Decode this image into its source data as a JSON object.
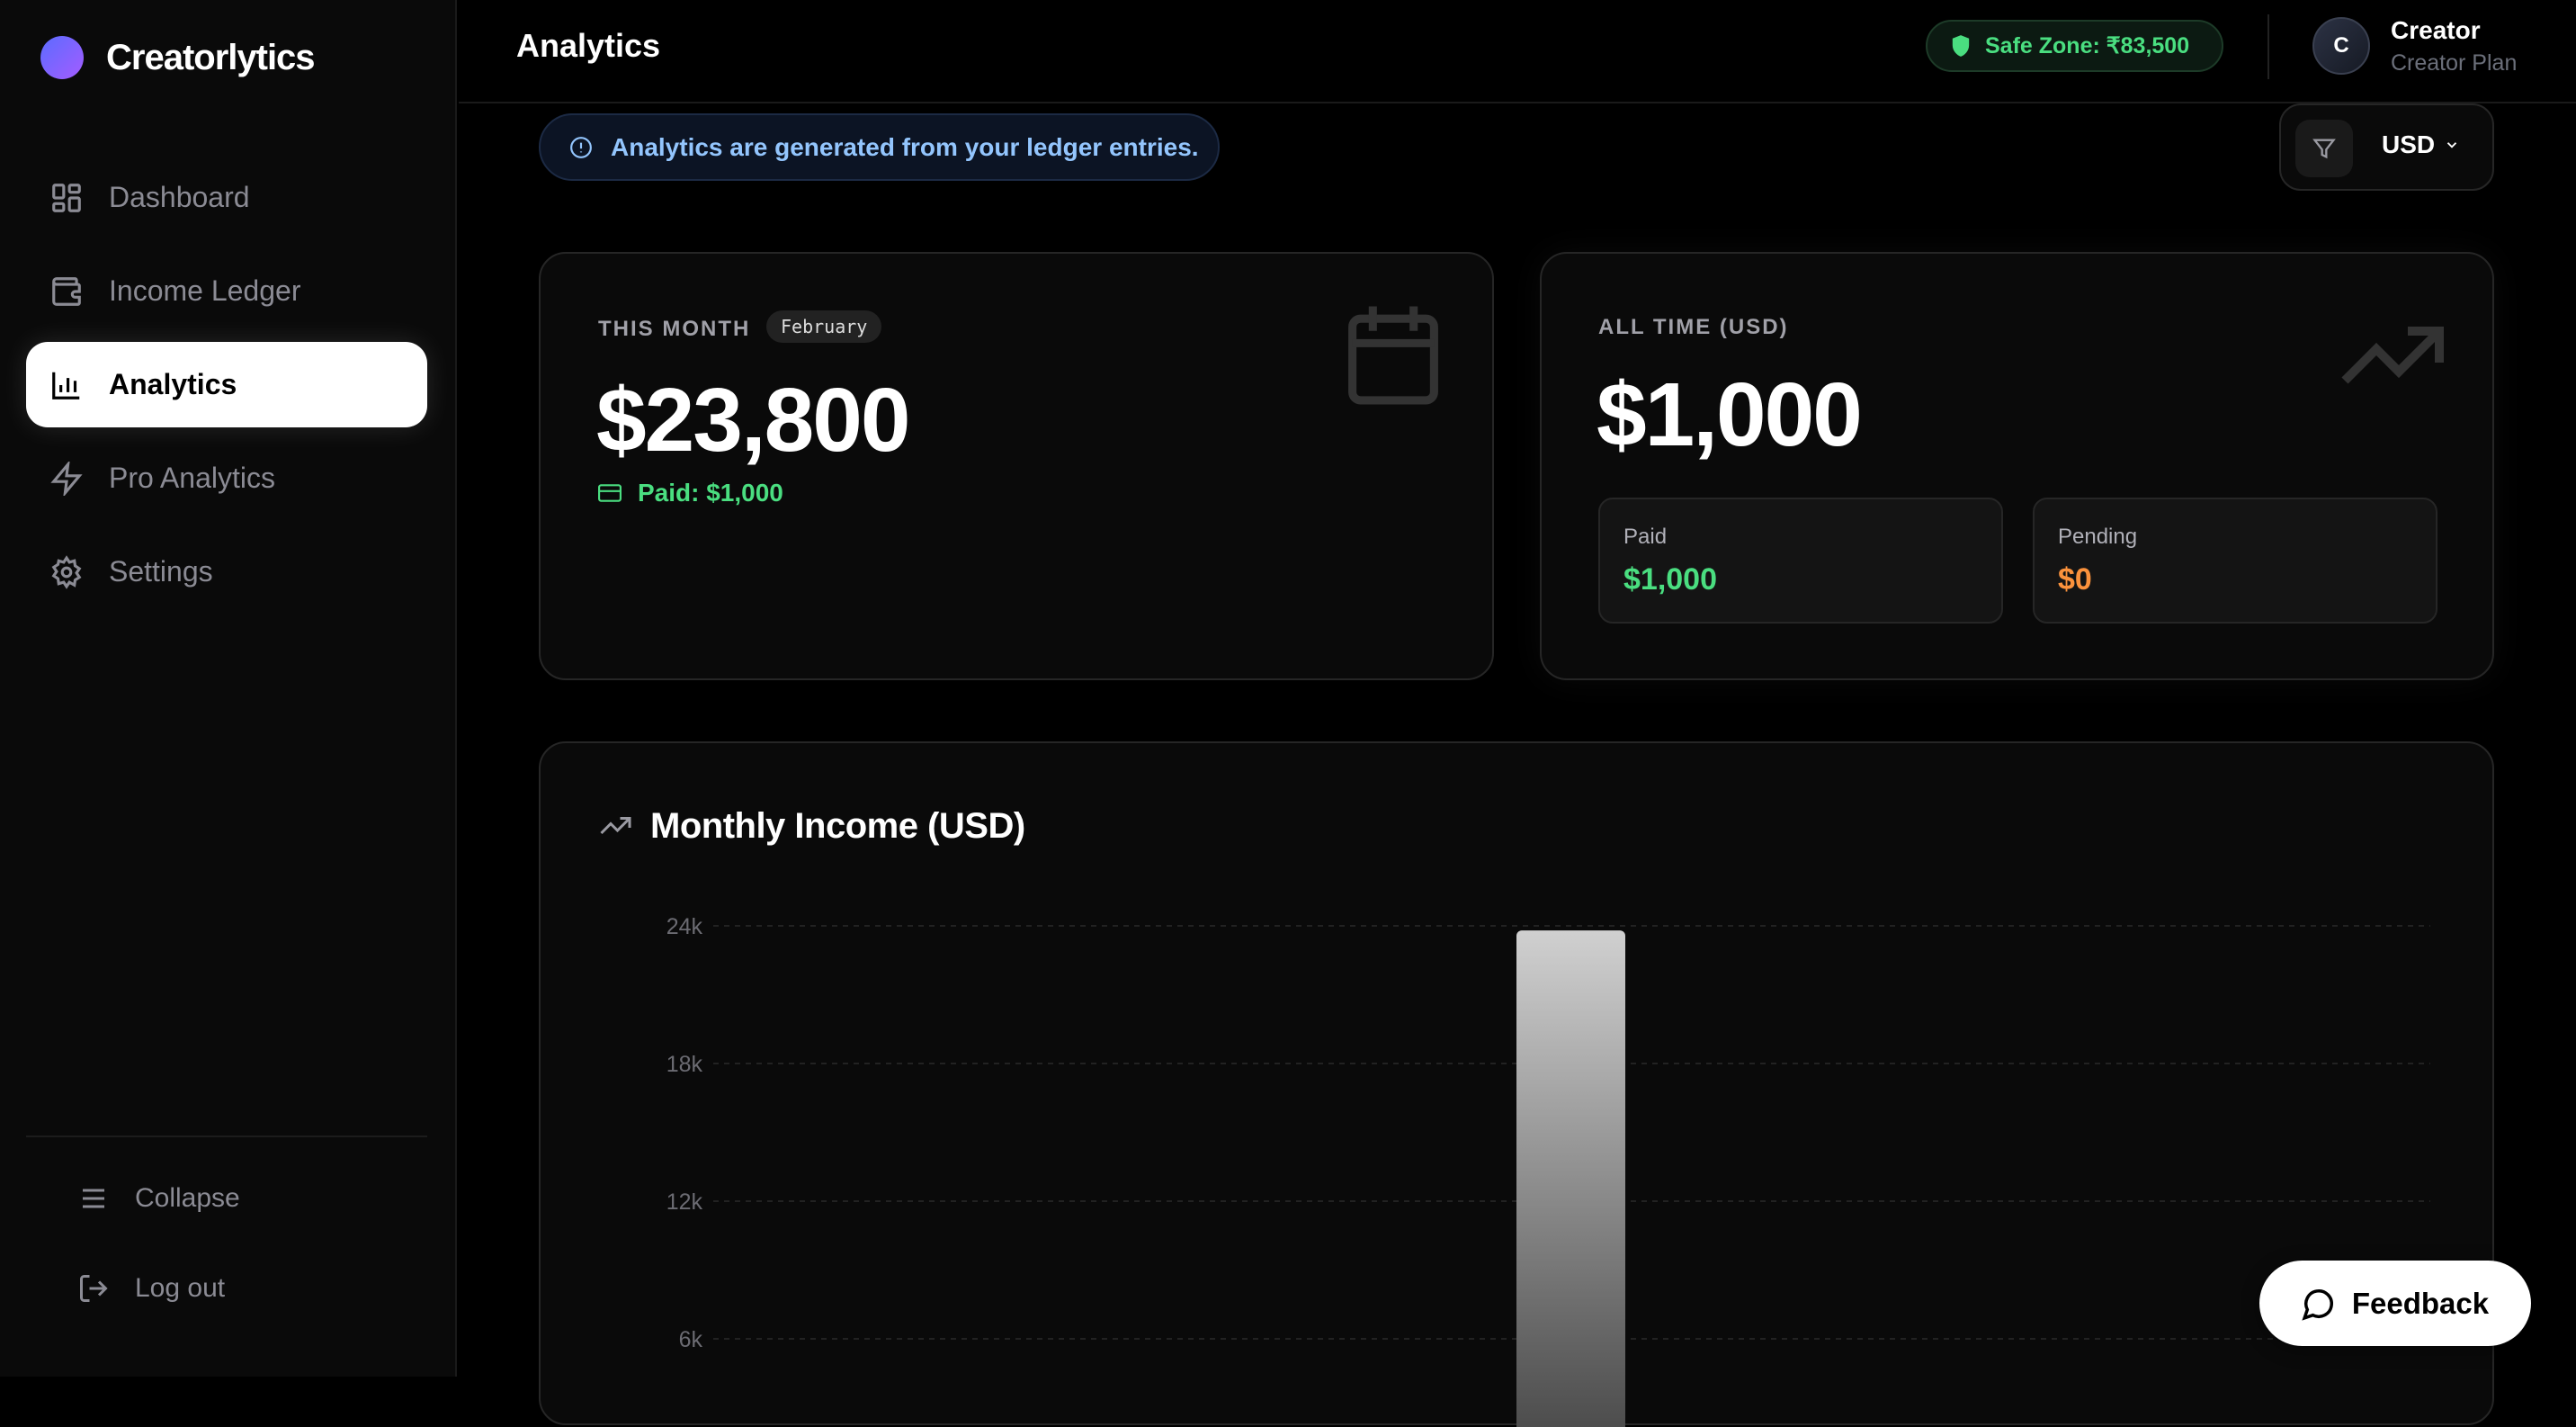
{
  "app": {
    "name": "Creatorlytics"
  },
  "sidebar": {
    "items": [
      {
        "label": "Dashboard",
        "icon": "dashboard-grid-icon"
      },
      {
        "label": "Income Ledger",
        "icon": "wallet-icon"
      },
      {
        "label": "Analytics",
        "icon": "bar-chart-icon",
        "active": true
      },
      {
        "label": "Pro Analytics",
        "icon": "lightning-icon"
      },
      {
        "label": "Settings",
        "icon": "gear-icon"
      }
    ],
    "collapse": "Collapse",
    "logout": "Log out"
  },
  "header": {
    "title": "Analytics",
    "safe_zone": "Safe Zone: ₹83,500",
    "user": {
      "initial": "C",
      "name": "Creator",
      "plan": "Creator Plan"
    }
  },
  "banner": "Analytics are generated from your ledger entries.",
  "filter": {
    "currency": "USD"
  },
  "this_month": {
    "label": "THIS MONTH",
    "month": "February",
    "amount": "$23,800",
    "paid": "Paid: $1,000"
  },
  "all_time": {
    "label": "ALL TIME (USD)",
    "amount": "$1,000",
    "paid_label": "Paid",
    "paid": "$1,000",
    "pending_label": "Pending",
    "pending": "$0"
  },
  "colors": {
    "green": "#4ade80",
    "orange": "#fb923c",
    "info": "#93c5fd",
    "safe": "#4ade80"
  },
  "chart_data": {
    "type": "bar",
    "title": "Monthly Income (USD)",
    "yticks": [
      "24k",
      "18k",
      "12k",
      "6k"
    ],
    "ylim": [
      0,
      24000
    ],
    "grid": true,
    "values": [
      23800
    ]
  },
  "feedback": "Feedback"
}
